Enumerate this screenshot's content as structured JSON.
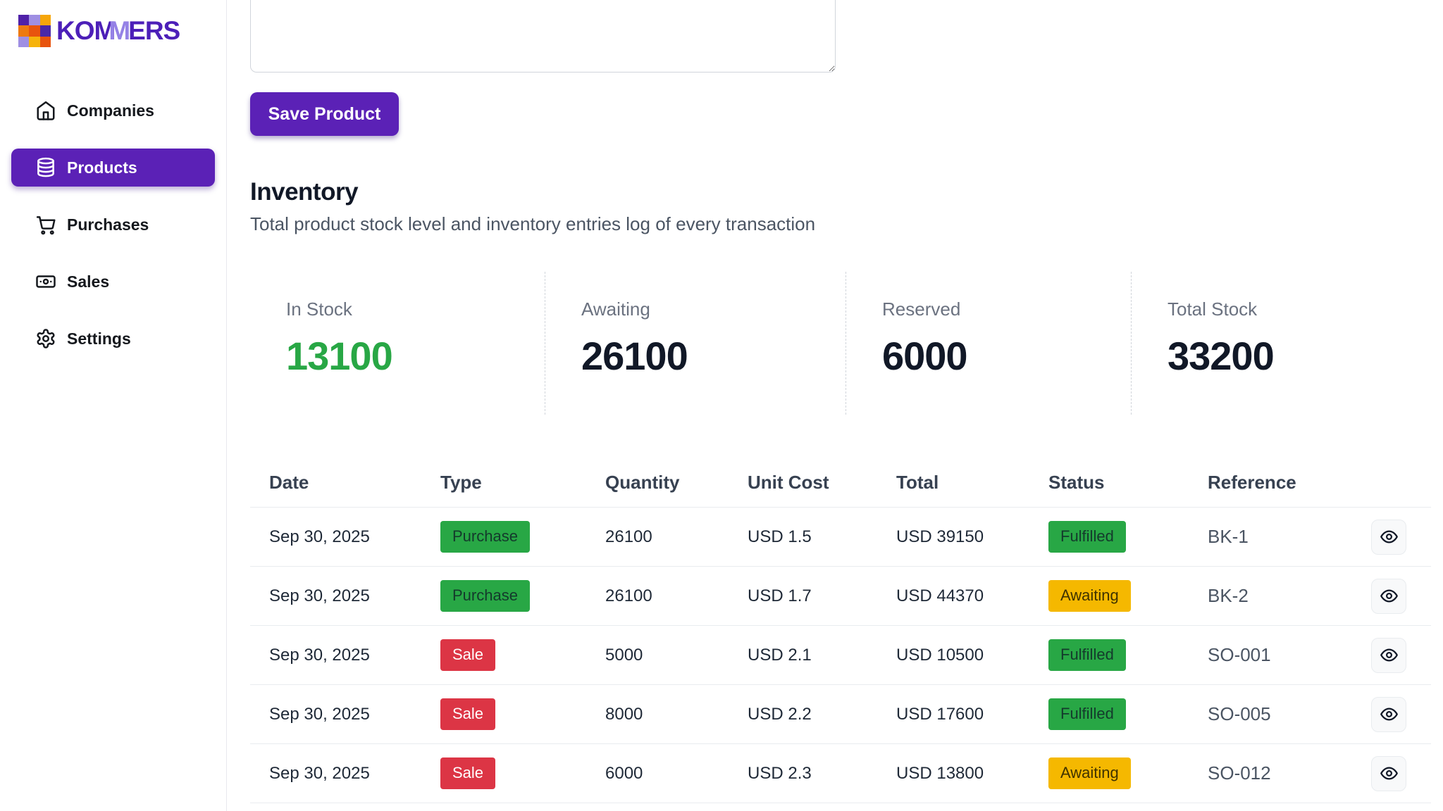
{
  "brand": {
    "name_part1": "KOM",
    "name_part2": "M",
    "name_part3": "ERS",
    "grid_colors": [
      "#4f21a8",
      "#9f8fe3",
      "#f6a60b",
      "#ee7a10",
      "#e8540e",
      "#4a28a8",
      "#9f8fe3",
      "#f6b30b",
      "#e8540e"
    ]
  },
  "sidebar": {
    "items": [
      {
        "label": "Companies",
        "icon": "home-icon",
        "active": false
      },
      {
        "label": "Products",
        "icon": "database-icon",
        "active": true
      },
      {
        "label": "Purchases",
        "icon": "cart-icon",
        "active": false
      },
      {
        "label": "Sales",
        "icon": "banknote-icon",
        "active": false
      },
      {
        "label": "Settings",
        "icon": "gear-icon",
        "active": false
      }
    ]
  },
  "product_form": {
    "description_value": "",
    "save_button_label": "Save Product"
  },
  "inventory": {
    "title": "Inventory",
    "subtitle": "Total product stock level and inventory entries log of every transaction",
    "stats": [
      {
        "label": "In Stock",
        "value": "13100",
        "color": "#28a745"
      },
      {
        "label": "Awaiting",
        "value": "26100",
        "color": "#111827"
      },
      {
        "label": "Reserved",
        "value": "6000",
        "color": "#111827"
      },
      {
        "label": "Total Stock",
        "value": "33200",
        "color": "#111827"
      }
    ],
    "table": {
      "columns": [
        "Date",
        "Type",
        "Quantity",
        "Unit Cost",
        "Total",
        "Status",
        "Reference"
      ],
      "rows": [
        {
          "date": "Sep 30, 2025",
          "type": "Purchase",
          "type_variant": "green",
          "quantity": "26100",
          "unit_cost": "USD 1.5",
          "total": "USD 39150",
          "status": "Fulfilled",
          "status_variant": "green",
          "reference": "BK-1"
        },
        {
          "date": "Sep 30, 2025",
          "type": "Purchase",
          "type_variant": "green",
          "quantity": "26100",
          "unit_cost": "USD 1.7",
          "total": "USD 44370",
          "status": "Awaiting",
          "status_variant": "amber",
          "reference": "BK-2"
        },
        {
          "date": "Sep 30, 2025",
          "type": "Sale",
          "type_variant": "red",
          "quantity": "5000",
          "unit_cost": "USD 2.1",
          "total": "USD 10500",
          "status": "Fulfilled",
          "status_variant": "green",
          "reference": "SO-001"
        },
        {
          "date": "Sep 30, 2025",
          "type": "Sale",
          "type_variant": "red",
          "quantity": "8000",
          "unit_cost": "USD 2.2",
          "total": "USD 17600",
          "status": "Fulfilled",
          "status_variant": "green",
          "reference": "SO-005"
        },
        {
          "date": "Sep 30, 2025",
          "type": "Sale",
          "type_variant": "red",
          "quantity": "6000",
          "unit_cost": "USD 2.3",
          "total": "USD 13800",
          "status": "Awaiting",
          "status_variant": "amber",
          "reference": "SO-012"
        }
      ]
    }
  },
  "colors": {
    "primary_purple": "#5b21b6",
    "badge_green": "#28a745",
    "badge_amber": "#f5b800",
    "badge_red": "#dc3545",
    "in_stock_green": "#28a745"
  }
}
